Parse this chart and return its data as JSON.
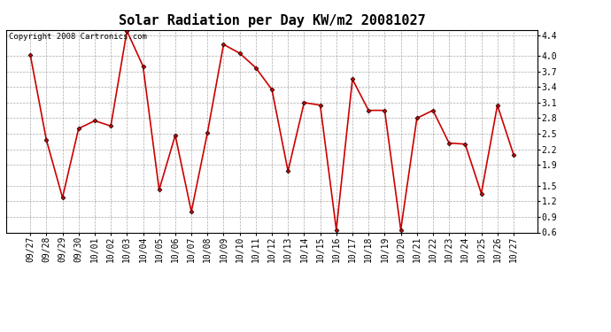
{
  "title": "Solar Radiation per Day KW/m2 20081027",
  "copyright_text": "Copyright 2008 Cartronics.com",
  "dates": [
    "09/27",
    "09/28",
    "09/29",
    "09/30",
    "10/01",
    "10/02",
    "10/03",
    "10/04",
    "10/05",
    "10/06",
    "10/07",
    "10/08",
    "10/09",
    "10/10",
    "10/11",
    "10/12",
    "10/13",
    "10/14",
    "10/15",
    "10/16",
    "10/17",
    "10/18",
    "10/19",
    "10/20",
    "10/21",
    "10/22",
    "10/23",
    "10/24",
    "10/25",
    "10/26",
    "10/27"
  ],
  "values": [
    4.02,
    2.38,
    1.27,
    2.6,
    2.75,
    2.65,
    4.48,
    3.8,
    1.42,
    2.47,
    1.0,
    2.52,
    4.22,
    4.05,
    3.77,
    3.35,
    1.78,
    3.1,
    3.05,
    0.65,
    3.55,
    2.95,
    2.95,
    0.65,
    2.8,
    2.95,
    2.32,
    2.3,
    1.35,
    3.05,
    2.1
  ],
  "line_color": "#cc0000",
  "marker": "D",
  "marker_size": 2.5,
  "linewidth": 1.2,
  "ylim": [
    0.6,
    4.5
  ],
  "yticks": [
    0.6,
    0.9,
    1.2,
    1.5,
    1.9,
    2.2,
    2.5,
    2.8,
    3.1,
    3.4,
    3.7,
    4.0,
    4.4
  ],
  "grid_color": "#aaaaaa",
  "grid_linestyle": "--",
  "bg_color": "#ffffff",
  "title_fontsize": 11,
  "tick_fontsize": 7,
  "copyright_fontsize": 6.5
}
